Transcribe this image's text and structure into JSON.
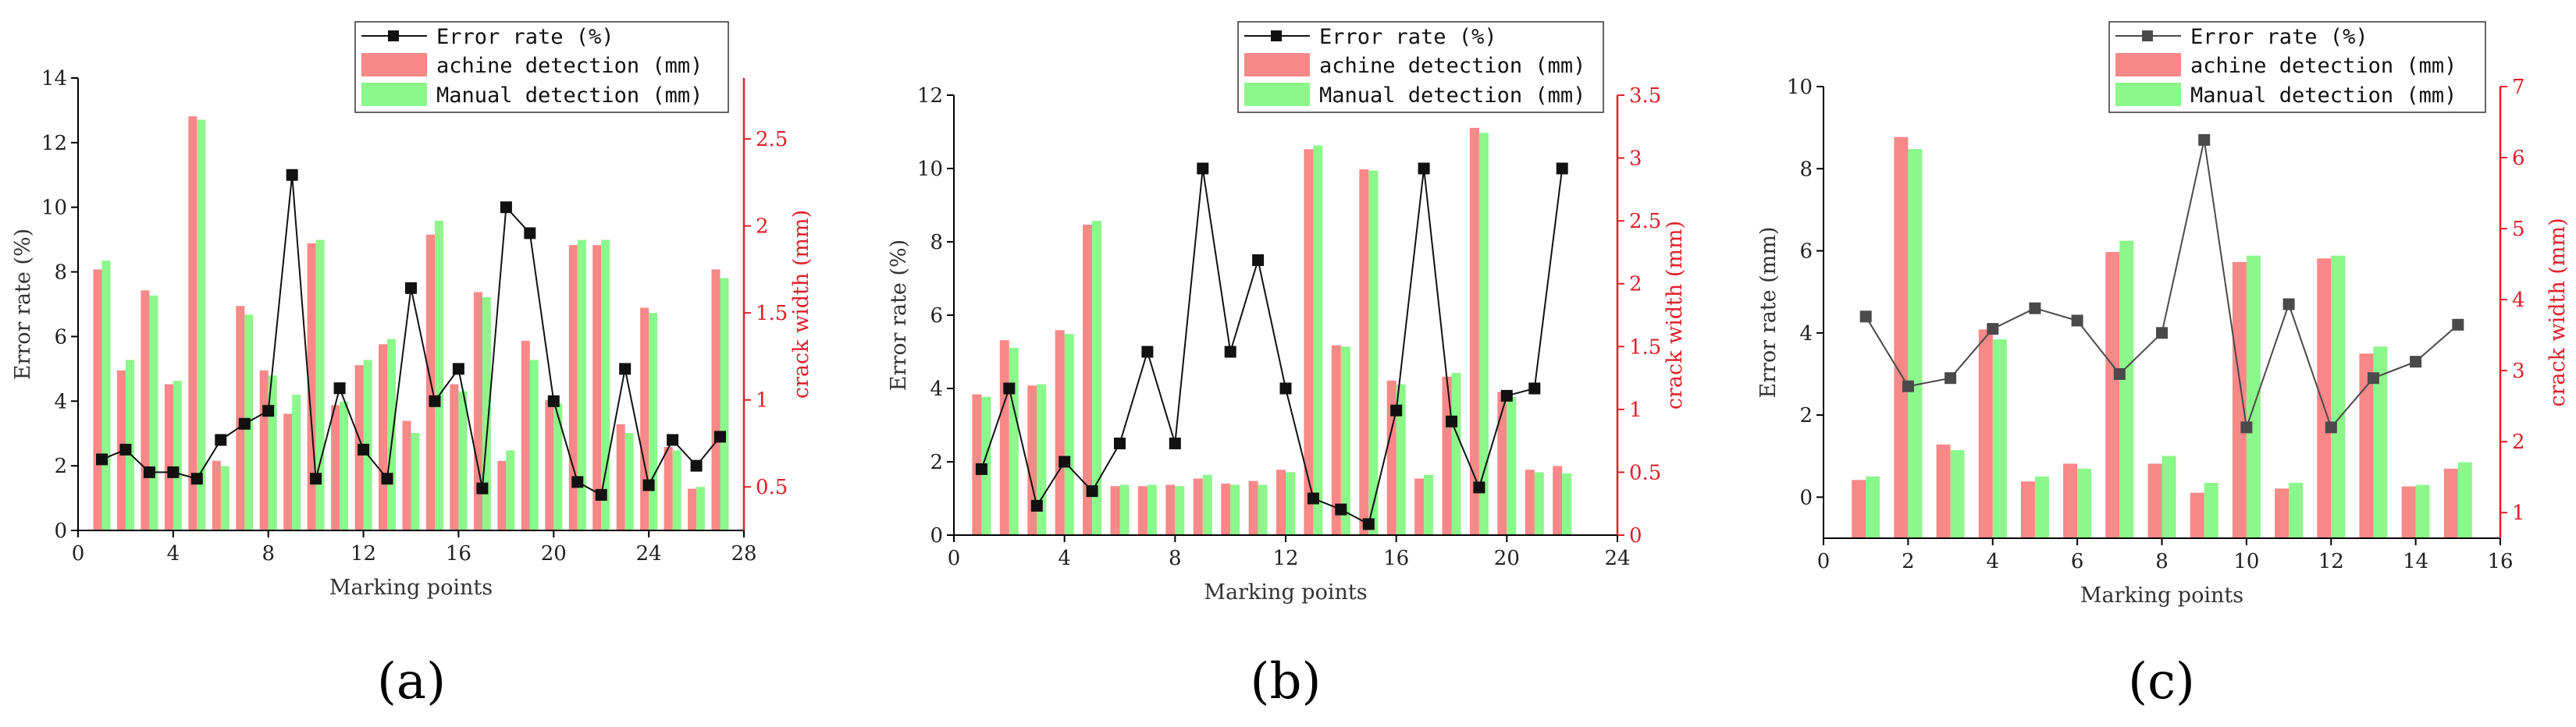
{
  "colors": {
    "machine": "#f98888",
    "manual": "#8cf78a",
    "error": "#111111",
    "error_c": "#4a4a4a",
    "right_axis": "#e0202a"
  },
  "chart_data": [
    {
      "type": "bar",
      "panel_label": "(a)",
      "xlabel": "Marking points",
      "ylabel": "Error rate (%)",
      "ylabel_right": "crack width (mm)",
      "xlim": [
        0,
        28
      ],
      "xticks": [
        0,
        4,
        8,
        12,
        16,
        20,
        24,
        28
      ],
      "ylim": [
        0,
        14
      ],
      "yticks": [
        0,
        2,
        4,
        6,
        8,
        10,
        12,
        14
      ],
      "ylim_right": [
        0.25,
        2.85
      ],
      "yticks_right": [
        0.5,
        1.0,
        1.5,
        2.0,
        2.5
      ],
      "legend": [
        "Error rate (%)",
        "achine detection (mm)",
        "Manual detection (mm)"
      ],
      "x": [
        1,
        2,
        3,
        4,
        5,
        6,
        7,
        8,
        9,
        10,
        11,
        12,
        13,
        14,
        15,
        16,
        17,
        18,
        19,
        20,
        21,
        22,
        23,
        24,
        25,
        26,
        27
      ],
      "series": [
        {
          "name": "achine detection (mm)",
          "kind": "bar",
          "axis": "right",
          "values": [
            1.75,
            1.17,
            1.63,
            1.09,
            2.63,
            0.65,
            1.54,
            1.17,
            0.92,
            1.9,
            0.97,
            1.2,
            1.32,
            0.88,
            1.95,
            1.09,
            1.62,
            0.65,
            1.34,
            1.0,
            1.89,
            1.89,
            0.86,
            1.53,
            0.73,
            0.49,
            1.75
          ]
        },
        {
          "name": "Manual detection (mm)",
          "kind": "bar",
          "axis": "right",
          "values": [
            1.8,
            1.23,
            1.6,
            1.11,
            2.61,
            0.62,
            1.49,
            1.14,
            1.03,
            1.92,
            0.99,
            1.23,
            1.35,
            0.81,
            2.03,
            1.05,
            1.59,
            0.71,
            1.23,
            0.98,
            1.92,
            1.92,
            0.81,
            1.5,
            0.71,
            0.5,
            1.7
          ]
        },
        {
          "name": "Error rate (%)",
          "kind": "line",
          "axis": "left",
          "values": [
            2.2,
            2.5,
            1.8,
            1.8,
            1.6,
            2.8,
            3.3,
            3.7,
            11.0,
            1.6,
            4.4,
            2.5,
            1.6,
            7.5,
            4.0,
            5.0,
            1.3,
            10.0,
            9.2,
            4.0,
            1.5,
            1.1,
            5.0,
            1.4,
            2.8,
            2.0,
            2.9
          ]
        }
      ]
    },
    {
      "type": "bar",
      "panel_label": "(b)",
      "xlabel": "Marking points",
      "ylabel": "Error rate (%)",
      "ylabel_right": "crack width (mm)",
      "xlim": [
        0,
        24
      ],
      "xticks": [
        0,
        4,
        8,
        12,
        16,
        20,
        24
      ],
      "ylim": [
        0,
        12
      ],
      "yticks": [
        0,
        2,
        4,
        6,
        8,
        10,
        12
      ],
      "ylim_right": [
        0,
        3.5
      ],
      "yticks_right": [
        0.0,
        0.5,
        1.0,
        1.5,
        2.0,
        2.5,
        3.0,
        3.5
      ],
      "legend": [
        "Error rate (%)",
        "achine detection (mm)",
        "Manual detection (mm)"
      ],
      "x": [
        1,
        2,
        3,
        4,
        5,
        6,
        7,
        8,
        9,
        10,
        11,
        12,
        13,
        14,
        15,
        16,
        17,
        18,
        19,
        20,
        21,
        22
      ],
      "series": [
        {
          "name": "achine detection (mm)",
          "kind": "bar",
          "axis": "right",
          "values": [
            1.12,
            1.55,
            1.19,
            1.63,
            2.47,
            0.39,
            0.39,
            0.4,
            0.45,
            0.41,
            0.43,
            0.52,
            3.07,
            1.51,
            2.91,
            1.23,
            0.45,
            1.26,
            3.24,
            1.14,
            0.52,
            0.55
          ]
        },
        {
          "name": "Manual detection (mm)",
          "kind": "bar",
          "axis": "right",
          "values": [
            1.1,
            1.49,
            1.2,
            1.6,
            2.5,
            0.4,
            0.4,
            0.39,
            0.48,
            0.4,
            0.4,
            0.5,
            3.1,
            1.5,
            2.9,
            1.2,
            0.48,
            1.29,
            3.2,
            1.1,
            0.5,
            0.49
          ]
        },
        {
          "name": "Error rate (%)",
          "kind": "line",
          "axis": "left",
          "values": [
            1.8,
            4.0,
            0.8,
            2.0,
            1.2,
            2.5,
            5.0,
            2.5,
            10.0,
            5.0,
            7.5,
            4.0,
            1.0,
            0.7,
            0.3,
            3.4,
            10.0,
            3.1,
            1.3,
            3.8,
            4.0,
            10.0
          ]
        }
      ]
    },
    {
      "type": "bar",
      "panel_label": "(c)",
      "xlabel": "Marking points",
      "ylabel": "Error rate (mm)",
      "ylabel_right": "crack width (mm)",
      "xlim": [
        0,
        16
      ],
      "xticks": [
        0,
        2,
        4,
        6,
        8,
        10,
        12,
        14,
        16
      ],
      "ylim": [
        -1,
        10
      ],
      "yticks": [
        0,
        2,
        4,
        6,
        8,
        10
      ],
      "ylim_right": [
        0.64,
        7
      ],
      "yticks_right": [
        1,
        2,
        3,
        4,
        5,
        6,
        7
      ],
      "legend": [
        "Error rate (%)",
        "achine detection (mm)",
        "Manual detection (mm)"
      ],
      "x": [
        1,
        2,
        3,
        4,
        5,
        6,
        7,
        8,
        9,
        10,
        11,
        12,
        13,
        14,
        15
      ],
      "series": [
        {
          "name": "achine detection (mm)",
          "kind": "bar",
          "axis": "right",
          "values": [
            1.46,
            6.29,
            1.96,
            3.58,
            1.44,
            1.69,
            4.67,
            1.69,
            1.28,
            4.53,
            1.34,
            4.58,
            3.24,
            1.37,
            1.62
          ]
        },
        {
          "name": "Manual detection (mm)",
          "kind": "bar",
          "axis": "right",
          "values": [
            1.51,
            6.12,
            1.88,
            3.44,
            1.51,
            1.62,
            4.83,
            1.8,
            1.42,
            4.62,
            1.42,
            4.62,
            3.34,
            1.39,
            1.71
          ]
        },
        {
          "name": "Error rate (%)",
          "kind": "line",
          "axis": "left",
          "values": [
            4.4,
            2.7,
            2.9,
            4.1,
            4.6,
            4.3,
            3.0,
            4.0,
            8.7,
            1.7,
            4.7,
            1.7,
            2.9,
            3.3,
            4.2
          ]
        }
      ]
    }
  ]
}
